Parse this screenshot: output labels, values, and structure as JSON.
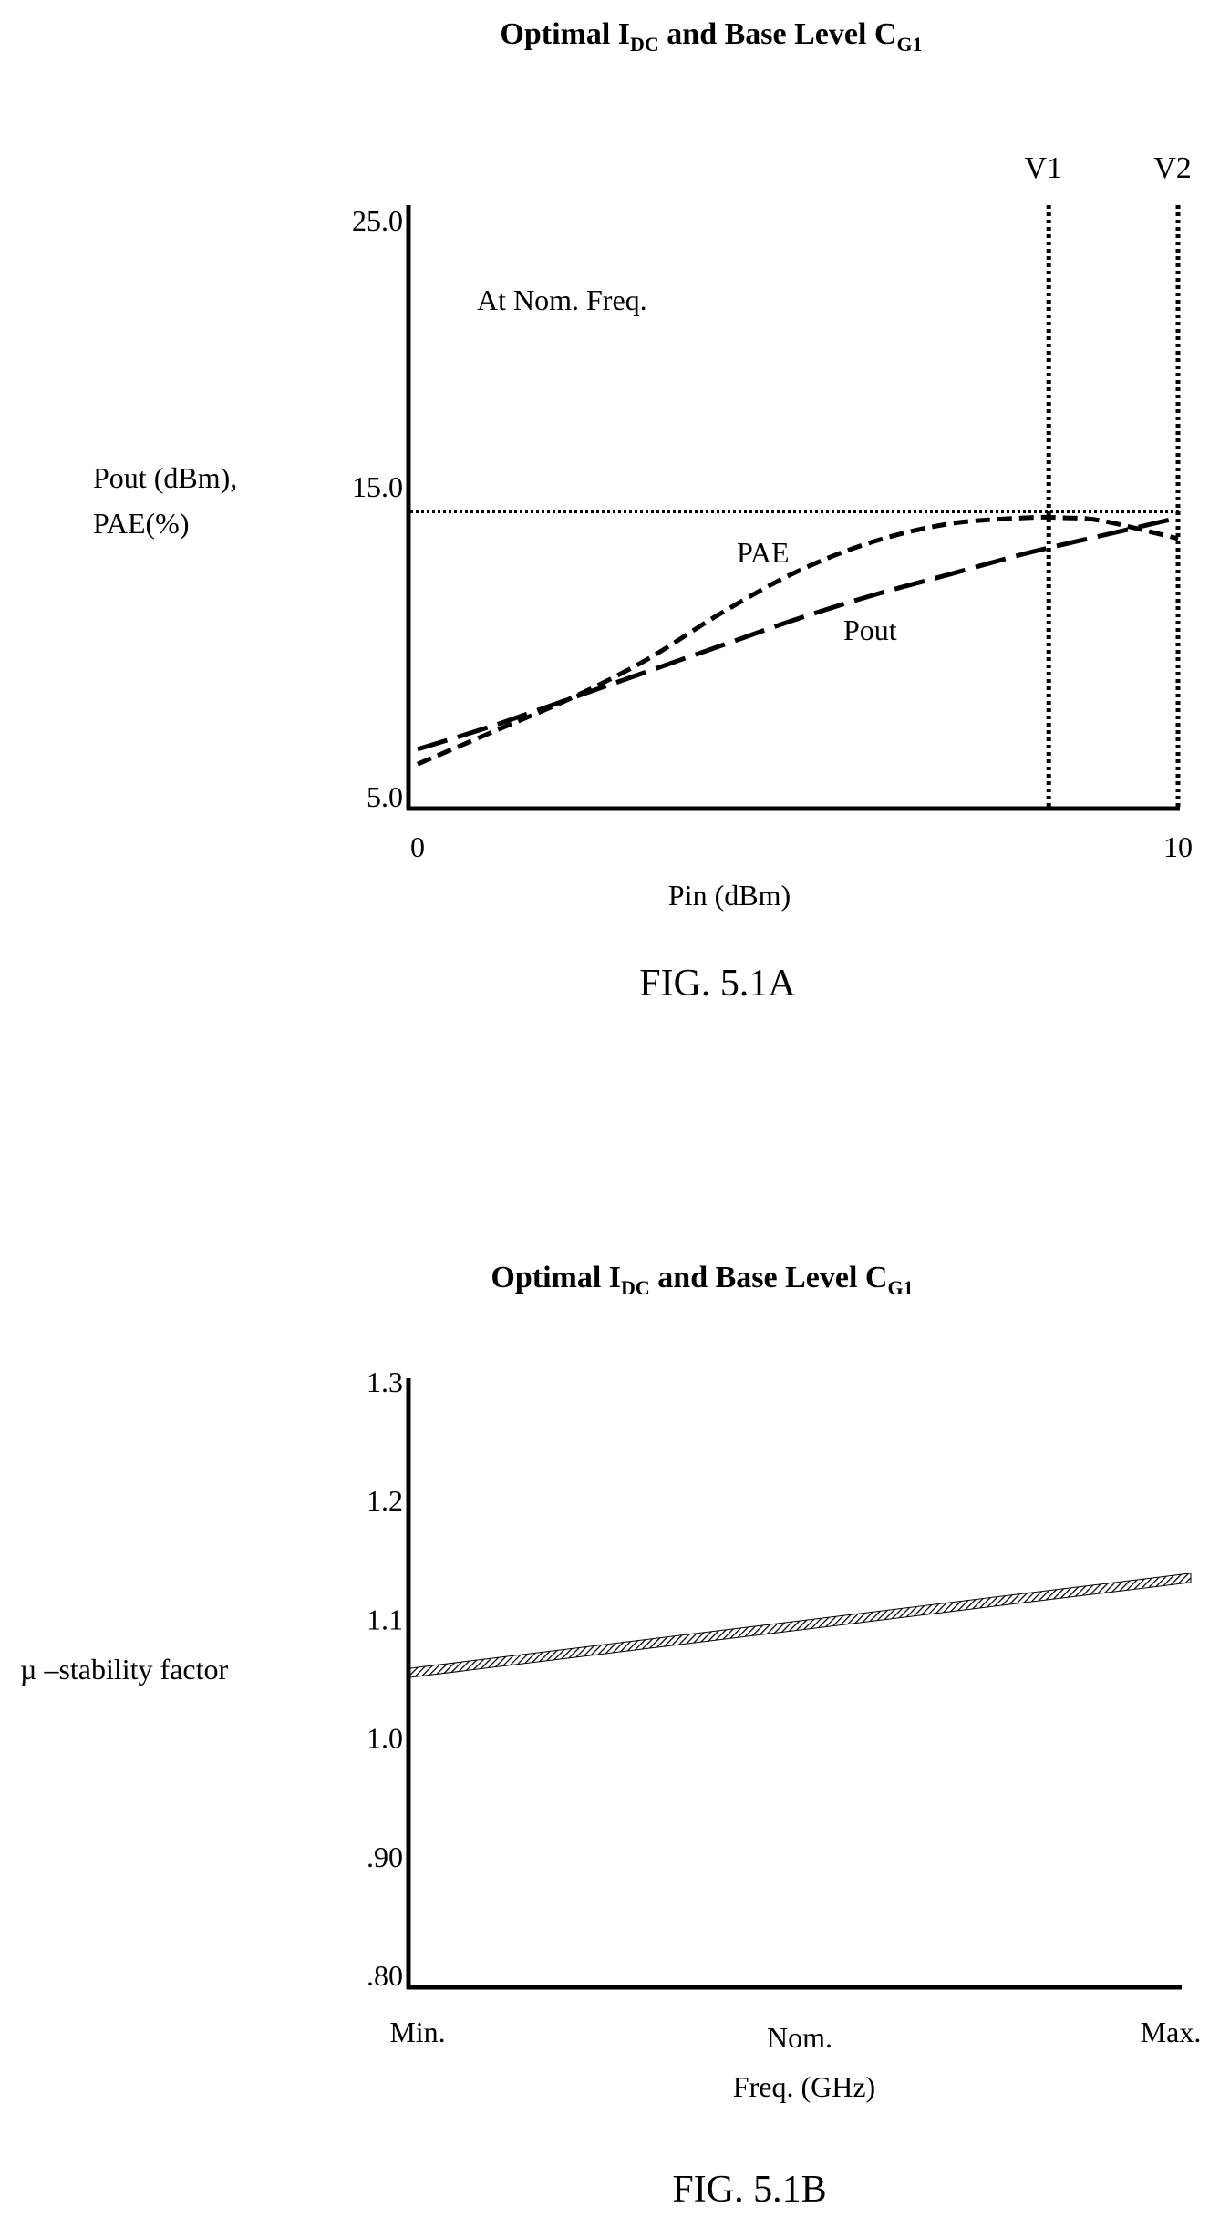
{
  "chart_data": [
    {
      "type": "line",
      "title_main_1": "Optimal I",
      "title_sub_1": "DC",
      "title_main_2": " and Base Level C",
      "title_sub_2": "G1",
      "annotation": "At Nom. Freq.",
      "ylabel_line1": "Pout (dBm),",
      "ylabel_line2": "PAE(%)",
      "xlabel": "Pin (dBm)",
      "ylim": [
        5.0,
        25.0
      ],
      "xlim": [
        0,
        10
      ],
      "y_ticks": [
        "25.0",
        "15.0",
        "5.0"
      ],
      "x_ticks": [
        "0",
        "10"
      ],
      "reference_line_y": 15.0,
      "vertical_markers": [
        {
          "label": "V1",
          "x": 8.3
        },
        {
          "label": "V2",
          "x": 10
        }
      ],
      "series": [
        {
          "name": "PAE",
          "style": "short-dash",
          "x": [
            0,
            1,
            2,
            3,
            4,
            5,
            6,
            7,
            8,
            8.5,
            9,
            10
          ],
          "y": [
            6.5,
            7.6,
            8.7,
            10.0,
            11.6,
            13.0,
            14.0,
            14.6,
            14.8,
            14.8,
            14.7,
            14.1
          ]
        },
        {
          "name": "Pout",
          "style": "long-dash",
          "x": [
            0,
            1,
            2,
            3,
            4,
            5,
            6,
            7,
            8,
            9,
            10
          ],
          "y": [
            7.0,
            7.8,
            8.7,
            9.6,
            10.5,
            11.4,
            12.2,
            12.9,
            13.6,
            14.2,
            14.8
          ]
        }
      ],
      "figure_label": "FIG. 5.1A"
    },
    {
      "type": "line",
      "title_main_1": "Optimal I",
      "title_sub_1": "DC",
      "title_main_2": " and Base Level C",
      "title_sub_2": "G1",
      "ylabel": "µ –stability factor",
      "xlabel": "Freq. (GHz)",
      "ylim": [
        0.8,
        1.3
      ],
      "y_ticks": [
        "1.3",
        "1.2",
        "1.1",
        "1.0",
        ".90",
        ".80"
      ],
      "y_tick_values": [
        1.3,
        1.2,
        1.1,
        1.0,
        0.9,
        0.8
      ],
      "categories": [
        "Min.",
        "Nom.",
        "Max."
      ],
      "series": [
        {
          "style": "hatched",
          "x": [
            0,
            1
          ],
          "y": [
            1.055,
            1.135
          ]
        }
      ],
      "figure_label": "FIG. 5.1B"
    }
  ]
}
